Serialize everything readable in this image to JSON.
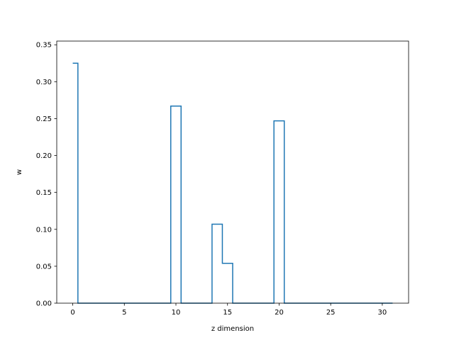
{
  "chart_data": {
    "type": "line",
    "style": "step-mid",
    "xlabel": "z dimension",
    "ylabel": "w",
    "xlim": [
      -1.55,
      32.55
    ],
    "ylim": [
      0.0,
      0.355
    ],
    "x_ticks": [
      0,
      5,
      10,
      15,
      20,
      25,
      30
    ],
    "x_tick_labels": [
      "0",
      "5",
      "10",
      "15",
      "20",
      "25",
      "30"
    ],
    "y_ticks": [
      0.0,
      0.05,
      0.1,
      0.15,
      0.2,
      0.25,
      0.3,
      0.35
    ],
    "y_tick_labels": [
      "0.00",
      "0.05",
      "0.10",
      "0.15",
      "0.20",
      "0.25",
      "0.30",
      "0.35"
    ],
    "grid": false,
    "series": [
      {
        "color": "#1f77b4",
        "x": [
          0,
          1,
          2,
          3,
          4,
          5,
          6,
          7,
          8,
          9,
          10,
          11,
          12,
          13,
          14,
          15,
          16,
          17,
          18,
          19,
          20,
          21,
          22,
          23,
          24,
          25,
          26,
          27,
          28,
          29,
          30,
          31
        ],
        "y": [
          0.325,
          0,
          0,
          0,
          0,
          0,
          0,
          0,
          0,
          0,
          0.267,
          0,
          0,
          0,
          0.107,
          0.054,
          0,
          0,
          0,
          0,
          0.247,
          0,
          0,
          0,
          0,
          0,
          0,
          0,
          0,
          0,
          0,
          0
        ]
      }
    ]
  }
}
